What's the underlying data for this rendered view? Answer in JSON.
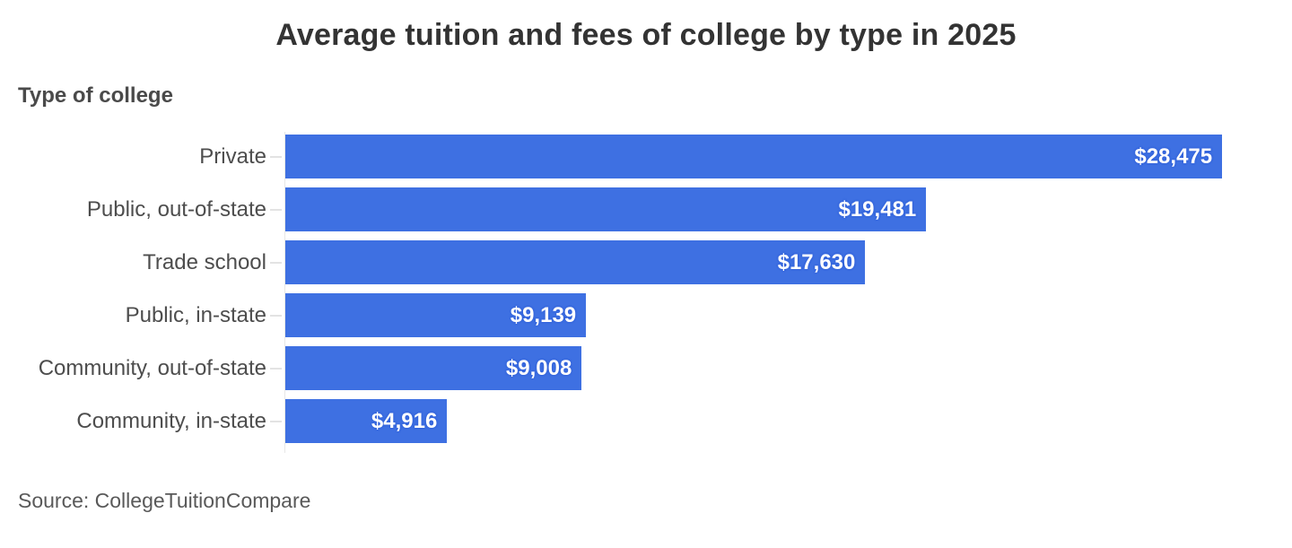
{
  "title": "Average tuition and fees of college by type in 2025",
  "axis_title": "Type of college",
  "source": "Source: CollegeTuitionCompare",
  "colors": {
    "bar": "#3E70E2",
    "value_label": "#FFFFFF",
    "title_text": "#333333",
    "category_text": "#4d4d4d",
    "axis_line": "#e7e7e7"
  },
  "chart_data": {
    "type": "bar",
    "orientation": "horizontal",
    "title": "Average tuition and fees of college by type in 2025",
    "ylabel": "Type of college",
    "xlabel": "",
    "categories": [
      "Private",
      "Public, out-of-state",
      "Trade school",
      "Public, in-state",
      "Community, out-of-state",
      "Community, in-state"
    ],
    "values": [
      28475,
      19481,
      17630,
      9139,
      9008,
      4916
    ],
    "value_labels": [
      "$28,475",
      "$19,481",
      "$17,630",
      "$9,139",
      "$9,008",
      "$4,916"
    ],
    "xlim": [
      0,
      30600
    ],
    "grid": false,
    "legend": false,
    "source": "Source: CollegeTuitionCompare"
  }
}
